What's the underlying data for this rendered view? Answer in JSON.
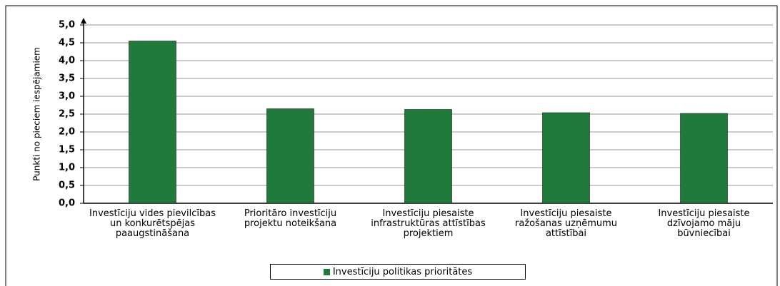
{
  "chart_data": {
    "type": "bar",
    "y_label": "Punkti no pieciem iespējamiem",
    "categories": [
      "Investīciju vides pievilcības un konkurētspējas paaugstināšana",
      "Prioritāro investīciju projektu noteikšana",
      "Investīciju piesaiste infrastruktūras attīstības projektiem",
      "Investīciju piesaiste ražošanas uzņēmumu attīstībai",
      "Investīciju piesaiste dzīvojamo māju būvniecībai"
    ],
    "series": [
      {
        "name": "Investīciju politikas prioritātes",
        "color": "#1f7a3c",
        "values": [
          4.55,
          2.65,
          2.63,
          2.54,
          2.52
        ]
      }
    ],
    "ylim": [
      0,
      5
    ],
    "yticks": [
      {
        "value": 0,
        "label": "0,0"
      },
      {
        "value": 0.5,
        "label": "0,5"
      },
      {
        "value": 1,
        "label": "1,0"
      },
      {
        "value": 1.5,
        "label": "1,5"
      },
      {
        "value": 2,
        "label": "2,0"
      },
      {
        "value": 2.5,
        "label": "2,5"
      },
      {
        "value": 3,
        "label": "3,0"
      },
      {
        "value": 3.5,
        "label": "3,5"
      },
      {
        "value": 4,
        "label": "4,0"
      },
      {
        "value": 4.5,
        "label": "4,5"
      },
      {
        "value": 5,
        "label": "5,0"
      }
    ],
    "grid": true,
    "legend": "bottom"
  }
}
